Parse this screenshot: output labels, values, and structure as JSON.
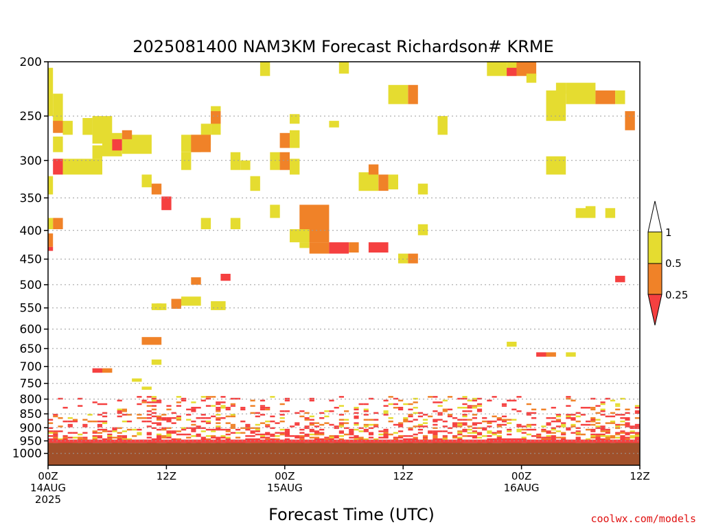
{
  "chart_data": {
    "type": "heatmap",
    "title": "2025081400 NAM3KM Forecast Richardson# KRME",
    "xlabel": "Forecast Time (UTC)",
    "credit": "coolwx.com/models",
    "x_range_hours": [
      0,
      60
    ],
    "y_scale": "log pressure (inverted)",
    "y_range_hpa": [
      200,
      1050
    ],
    "y_ticks": [
      200,
      250,
      300,
      350,
      400,
      450,
      500,
      550,
      600,
      650,
      700,
      750,
      800,
      850,
      900,
      950,
      1000
    ],
    "x_ticks": [
      {
        "hour": 0,
        "lines": [
          "00Z",
          "14AUG",
          "2025"
        ]
      },
      {
        "hour": 12,
        "lines": [
          "12Z"
        ]
      },
      {
        "hour": 24,
        "lines": [
          "00Z",
          "15AUG"
        ]
      },
      {
        "hour": 36,
        "lines": [
          "12Z"
        ]
      },
      {
        "hour": 48,
        "lines": [
          "00Z",
          "16AUG"
        ]
      },
      {
        "hour": 60,
        "lines": [
          "12Z"
        ]
      }
    ],
    "grid": "dotted horizontal lines at pressure ticks",
    "legend": {
      "placement": "right",
      "labels": [
        "1",
        "0.5",
        "0.25"
      ],
      "bins": [
        {
          "range": "0.5-1",
          "color": "#e5dc30"
        },
        {
          "range": "0.25-0.5",
          "color": "#f08228"
        },
        {
          "range": "<0.25",
          "color": "#f54040"
        }
      ],
      "over_color": "#ffffff"
    },
    "ground": {
      "top_hpa": 958,
      "color": "#a0502a"
    },
    "cells": [
      {
        "x": [
          0,
          0.5
        ],
        "p": [
          205,
          250
        ],
        "v": "y"
      },
      {
        "x": [
          0.5,
          1.5
        ],
        "p": [
          228,
          262
        ],
        "v": "y"
      },
      {
        "x": [
          0.5,
          1.5
        ],
        "p": [
          255,
          268
        ],
        "v": "o"
      },
      {
        "x": [
          1.5,
          2.5
        ],
        "p": [
          255,
          270
        ],
        "v": "y"
      },
      {
        "x": [
          0.5,
          1.5
        ],
        "p": [
          272,
          290
        ],
        "v": "y"
      },
      {
        "x": [
          0.5,
          1.5
        ],
        "p": [
          298,
          318
        ],
        "v": "r"
      },
      {
        "x": [
          1.5,
          5.5
        ],
        "p": [
          298,
          318
        ],
        "v": "y"
      },
      {
        "x": [
          3.5,
          4.5
        ],
        "p": [
          252,
          270
        ],
        "v": "y"
      },
      {
        "x": [
          4.5,
          6.5
        ],
        "p": [
          250,
          280
        ],
        "v": "y"
      },
      {
        "x": [
          4.5,
          5.5
        ],
        "p": [
          282,
          298
        ],
        "v": "y"
      },
      {
        "x": [
          5.5,
          7.5
        ],
        "p": [
          268,
          295
        ],
        "v": "y"
      },
      {
        "x": [
          6.5,
          7.5
        ],
        "p": [
          275,
          288
        ],
        "v": "r"
      },
      {
        "x": [
          7.5,
          10.5
        ],
        "p": [
          270,
          292
        ],
        "v": "y"
      },
      {
        "x": [
          7.5,
          8.5
        ],
        "p": [
          265,
          275
        ],
        "v": "o"
      },
      {
        "x": [
          0,
          0.5
        ],
        "p": [
          320,
          345
        ],
        "v": "y"
      },
      {
        "x": [
          9.5,
          10.5
        ],
        "p": [
          318,
          335
        ],
        "v": "y"
      },
      {
        "x": [
          10.5,
          11.5
        ],
        "p": [
          330,
          345
        ],
        "v": "o"
      },
      {
        "x": [
          11.5,
          12.5
        ],
        "p": [
          348,
          368
        ],
        "v": "r"
      },
      {
        "x": [
          0,
          0.5
        ],
        "p": [
          380,
          398
        ],
        "v": "y"
      },
      {
        "x": [
          0.5,
          1.5
        ],
        "p": [
          380,
          398
        ],
        "v": "o"
      },
      {
        "x": [
          0,
          0.5
        ],
        "p": [
          405,
          428
        ],
        "v": "o"
      },
      {
        "x": [
          0,
          0.5
        ],
        "p": [
          428,
          435
        ],
        "v": "r"
      },
      {
        "x": [
          13.5,
          15.5
        ],
        "p": [
          270,
          290
        ],
        "v": "y"
      },
      {
        "x": [
          15.5,
          16.5
        ],
        "p": [
          258,
          282
        ],
        "v": "y"
      },
      {
        "x": [
          14.5,
          16.5
        ],
        "p": [
          270,
          290
        ],
        "v": "o"
      },
      {
        "x": [
          16.5,
          17.5
        ],
        "p": [
          255,
          270
        ],
        "v": "y"
      },
      {
        "x": [
          16.5,
          17.5
        ],
        "p": [
          240,
          255
        ],
        "v": "y"
      },
      {
        "x": [
          16.5,
          17.5
        ],
        "p": [
          245,
          258
        ],
        "v": "o"
      },
      {
        "x": [
          13.5,
          14.5
        ],
        "p": [
          290,
          312
        ],
        "v": "y"
      },
      {
        "x": [
          15.5,
          16.5
        ],
        "p": [
          380,
          398
        ],
        "v": "y"
      },
      {
        "x": [
          18.5,
          19.5
        ],
        "p": [
          290,
          312
        ],
        "v": "y"
      },
      {
        "x": [
          19.5,
          20.5
        ],
        "p": [
          300,
          312
        ],
        "v": "y"
      },
      {
        "x": [
          18.5,
          19.5
        ],
        "p": [
          380,
          398
        ],
        "v": "y"
      },
      {
        "x": [
          20.5,
          21.5
        ],
        "p": [
          320,
          340
        ],
        "v": "y"
      },
      {
        "x": [
          10.5,
          11.5
        ],
        "p": [
          540,
          555
        ],
        "v": "y"
      },
      {
        "x": [
          12.5,
          13.5
        ],
        "p": [
          530,
          552
        ],
        "v": "o"
      },
      {
        "x": [
          13.5,
          15.5
        ],
        "p": [
          525,
          545
        ],
        "v": "y"
      },
      {
        "x": [
          14.5,
          15.5
        ],
        "p": [
          485,
          500
        ],
        "v": "o"
      },
      {
        "x": [
          17.5,
          18.5
        ],
        "p": [
          478,
          492
        ],
        "v": "r"
      },
      {
        "x": [
          11,
          12
        ],
        "p": [
          540,
          555
        ],
        "v": "y"
      },
      {
        "x": [
          16.5,
          18
        ],
        "p": [
          535,
          555
        ],
        "v": "y"
      },
      {
        "x": [
          21.5,
          22.5
        ],
        "p": [
          200,
          212
        ],
        "v": "y"
      },
      {
        "x": [
          22.5,
          23.5
        ],
        "p": [
          290,
          312
        ],
        "v": "y"
      },
      {
        "x": [
          23.5,
          24.5
        ],
        "p": [
          290,
          312
        ],
        "v": "o"
      },
      {
        "x": [
          24.5,
          25.5
        ],
        "p": [
          298,
          318
        ],
        "v": "y"
      },
      {
        "x": [
          23.5,
          24.5
        ],
        "p": [
          268,
          285
        ],
        "v": "o"
      },
      {
        "x": [
          24.5,
          25.5
        ],
        "p": [
          265,
          285
        ],
        "v": "y"
      },
      {
        "x": [
          24.5,
          25.5
        ],
        "p": [
          248,
          258
        ],
        "v": "y"
      },
      {
        "x": [
          22.5,
          23.5
        ],
        "p": [
          360,
          380
        ],
        "v": "y"
      },
      {
        "x": [
          25.5,
          28.5
        ],
        "p": [
          360,
          420
        ],
        "v": "o"
      },
      {
        "x": [
          24.5,
          26.5
        ],
        "p": [
          398,
          420
        ],
        "v": "y"
      },
      {
        "x": [
          25.5,
          26.5
        ],
        "p": [
          420,
          430
        ],
        "v": "y"
      },
      {
        "x": [
          26.5,
          28.5
        ],
        "p": [
          420,
          440
        ],
        "v": "o"
      },
      {
        "x": [
          28.5,
          30.5
        ],
        "p": [
          420,
          440
        ],
        "v": "r"
      },
      {
        "x": [
          30.5,
          31.5
        ],
        "p": [
          420,
          438
        ],
        "v": "o"
      },
      {
        "x": [
          29.5,
          30.5
        ],
        "p": [
          198,
          210
        ],
        "v": "y"
      },
      {
        "x": [
          28.5,
          29.5
        ],
        "p": [
          255,
          262
        ],
        "v": "y"
      },
      {
        "x": [
          31.5,
          33.5
        ],
        "p": [
          315,
          340
        ],
        "v": "y"
      },
      {
        "x": [
          32.5,
          33.5
        ],
        "p": [
          305,
          318
        ],
        "v": "o"
      },
      {
        "x": [
          33.5,
          34.5
        ],
        "p": [
          318,
          340
        ],
        "v": "o"
      },
      {
        "x": [
          34.5,
          35.5
        ],
        "p": [
          318,
          338
        ],
        "v": "y"
      },
      {
        "x": [
          32.5,
          34.5
        ],
        "p": [
          420,
          438
        ],
        "v": "r"
      },
      {
        "x": [
          35.5,
          36.5
        ],
        "p": [
          440,
          458
        ],
        "v": "y"
      },
      {
        "x": [
          36.5,
          37.5
        ],
        "p": [
          440,
          458
        ],
        "v": "o"
      },
      {
        "x": [
          37.5,
          38.5
        ],
        "p": [
          330,
          345
        ],
        "v": "y"
      },
      {
        "x": [
          37.5,
          38.5
        ],
        "p": [
          390,
          408
        ],
        "v": "y"
      },
      {
        "x": [
          34.5,
          36.5
        ],
        "p": [
          220,
          238
        ],
        "v": "y"
      },
      {
        "x": [
          36.5,
          37.5
        ],
        "p": [
          220,
          238
        ],
        "v": "o"
      },
      {
        "x": [
          39.5,
          40.5
        ],
        "p": [
          250,
          270
        ],
        "v": "y"
      },
      {
        "x": [
          44.5,
          46.5
        ],
        "p": [
          200,
          212
        ],
        "v": "y"
      },
      {
        "x": [
          46.5,
          47.5
        ],
        "p": [
          200,
          212
        ],
        "v": "y"
      },
      {
        "x": [
          46.5,
          47.5
        ],
        "p": [
          205,
          212
        ],
        "v": "r"
      },
      {
        "x": [
          47.5,
          49.5
        ],
        "p": [
          200,
          212
        ],
        "v": "o"
      },
      {
        "x": [
          48.5,
          49.5
        ],
        "p": [
          210,
          218
        ],
        "v": "y"
      },
      {
        "x": [
          50.5,
          52.5
        ],
        "p": [
          225,
          255
        ],
        "v": "y"
      },
      {
        "x": [
          51.5,
          52.5
        ],
        "p": [
          218,
          228
        ],
        "v": "y"
      },
      {
        "x": [
          52.5,
          55.5
        ],
        "p": [
          218,
          238
        ],
        "v": "y"
      },
      {
        "x": [
          55.5,
          57.5
        ],
        "p": [
          225,
          238
        ],
        "v": "o"
      },
      {
        "x": [
          57.5,
          58.5
        ],
        "p": [
          225,
          238
        ],
        "v": "y"
      },
      {
        "x": [
          58.5,
          59.5
        ],
        "p": [
          245,
          265
        ],
        "v": "o"
      },
      {
        "x": [
          50.5,
          52.5
        ],
        "p": [
          295,
          318
        ],
        "v": "y"
      },
      {
        "x": [
          53.5,
          54.5
        ],
        "p": [
          365,
          380
        ],
        "v": "y"
      },
      {
        "x": [
          54.5,
          55.5
        ],
        "p": [
          362,
          380
        ],
        "v": "y"
      },
      {
        "x": [
          56.5,
          57.5
        ],
        "p": [
          365,
          380
        ],
        "v": "y"
      },
      {
        "x": [
          57.5,
          58.5
        ],
        "p": [
          482,
          495
        ],
        "v": "r"
      },
      {
        "x": [
          46.5,
          47.5
        ],
        "p": [
          632,
          645
        ],
        "v": "y"
      },
      {
        "x": [
          49.5,
          50.5
        ],
        "p": [
          660,
          672
        ],
        "v": "r"
      },
      {
        "x": [
          50.5,
          51.5
        ],
        "p": [
          660,
          672
        ],
        "v": "o"
      },
      {
        "x": [
          52.5,
          53.5
        ],
        "p": [
          660,
          672
        ],
        "v": "y"
      },
      {
        "x": [
          4.5,
          5.5
        ],
        "p": [
          705,
          718
        ],
        "v": "r"
      },
      {
        "x": [
          5.5,
          6.5
        ],
        "p": [
          705,
          718
        ],
        "v": "o"
      },
      {
        "x": [
          8.5,
          9.5
        ],
        "p": [
          735,
          745
        ],
        "v": "y"
      },
      {
        "x": [
          9.5,
          10.5
        ],
        "p": [
          760,
          770
        ],
        "v": "y"
      },
      {
        "x": [
          10.5,
          11.5
        ],
        "p": [
          680,
          695
        ],
        "v": "y"
      },
      {
        "x": [
          9.5,
          11.5
        ],
        "p": [
          620,
          640
        ],
        "v": "o"
      },
      {
        "x": [
          12.5,
          13.5
        ],
        "p": [
          530,
          545
        ],
        "v": "o"
      }
    ]
  }
}
